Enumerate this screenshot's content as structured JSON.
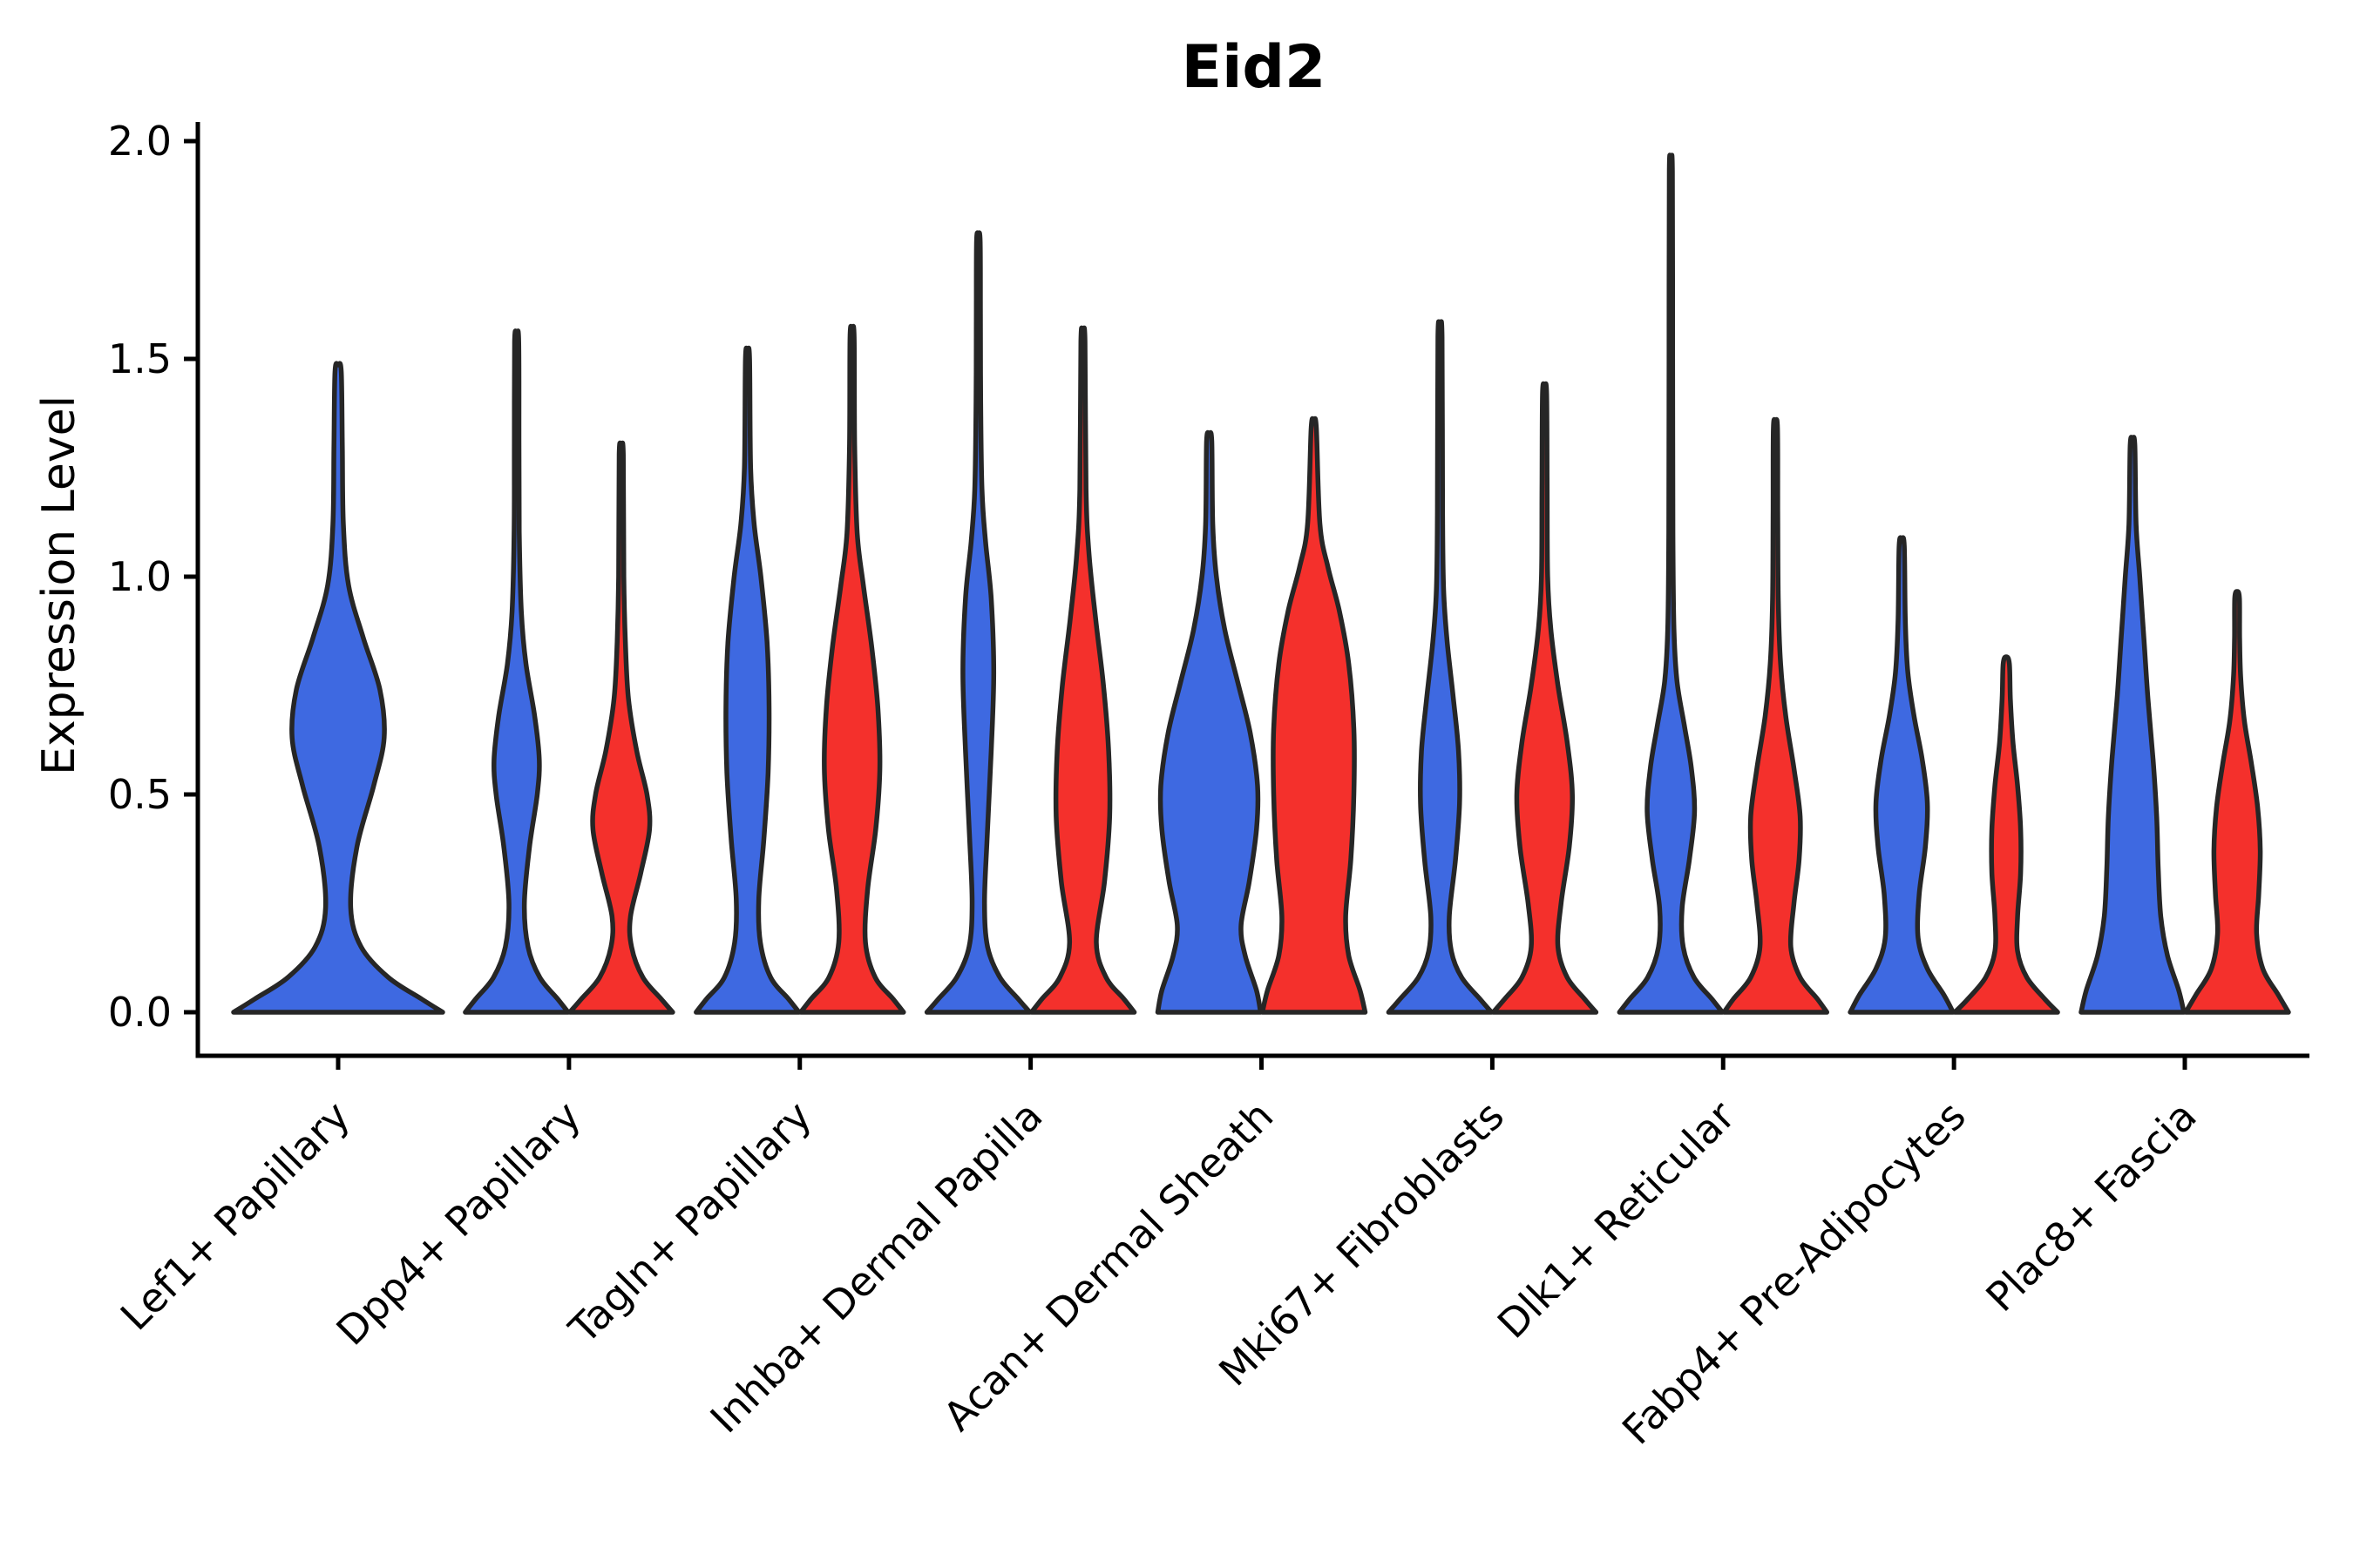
{
  "title": "Eid2",
  "axes": {
    "ylabel": "Expression Level",
    "ytick_labels": [
      "0.0",
      "0.5",
      "1.0",
      "1.5",
      "2.0"
    ]
  },
  "colors": {
    "blue_fill": "#3E69E1",
    "red_fill": "#F4302C",
    "violin_outline": "#262626",
    "axis_color": "#000000",
    "background": "#ffffff"
  },
  "chart_data": {
    "type": "violin",
    "title": "Eid2",
    "ylabel": "Expression Level",
    "ylim": [
      -0.1,
      2.04
    ],
    "yticks": [
      0,
      0.5,
      1.0,
      1.5,
      2.0
    ],
    "ytick_labels": [
      "0.0",
      "0.5",
      "1.0",
      "1.5",
      "2.0"
    ],
    "grid": false,
    "legend": "none",
    "categories": [
      "Lef1+ Papillary",
      "Dpp4+ Papillary",
      "Tagln+ Papillary",
      "Inhba+ Dermal Papilla",
      "Acan+ Dermal Sheath",
      "Mki67+ Fibroblasts",
      "Dlk1+ Reticular",
      "Fabp4+ Pre-Adipocytes",
      "Plac8+ Fascia"
    ],
    "series": [
      {
        "id": "blue",
        "color": "#3E69E1"
      },
      {
        "id": "red",
        "color": "#F4302C"
      }
    ],
    "violins": [
      {
        "category_index": 0,
        "series": "blue",
        "max": 1.47,
        "wide": true,
        "profile": [
          [
            0,
            1.0
          ],
          [
            0.03,
            0.8
          ],
          [
            0.08,
            0.48
          ],
          [
            0.15,
            0.22
          ],
          [
            0.24,
            0.12
          ],
          [
            0.38,
            0.18
          ],
          [
            0.52,
            0.34
          ],
          [
            0.63,
            0.44
          ],
          [
            0.74,
            0.4
          ],
          [
            0.86,
            0.24
          ],
          [
            0.98,
            0.1
          ],
          [
            1.12,
            0.05
          ],
          [
            1.3,
            0.04
          ],
          [
            1.47,
            0.03
          ]
        ]
      },
      {
        "category_index": 1,
        "series": "blue",
        "max": 1.54,
        "profile": [
          [
            0,
            1.0
          ],
          [
            0.03,
            0.8
          ],
          [
            0.08,
            0.45
          ],
          [
            0.15,
            0.22
          ],
          [
            0.25,
            0.15
          ],
          [
            0.38,
            0.25
          ],
          [
            0.5,
            0.4
          ],
          [
            0.58,
            0.44
          ],
          [
            0.68,
            0.35
          ],
          [
            0.8,
            0.18
          ],
          [
            0.92,
            0.09
          ],
          [
            1.1,
            0.05
          ],
          [
            1.3,
            0.045
          ],
          [
            1.54,
            0.04
          ]
        ]
      },
      {
        "category_index": 1,
        "series": "red",
        "max": 1.28,
        "profile": [
          [
            0,
            1.0
          ],
          [
            0.03,
            0.78
          ],
          [
            0.08,
            0.42
          ],
          [
            0.15,
            0.2
          ],
          [
            0.22,
            0.18
          ],
          [
            0.32,
            0.38
          ],
          [
            0.42,
            0.55
          ],
          [
            0.5,
            0.5
          ],
          [
            0.6,
            0.3
          ],
          [
            0.72,
            0.14
          ],
          [
            0.85,
            0.08
          ],
          [
            1.0,
            0.05
          ],
          [
            1.28,
            0.04
          ]
        ]
      },
      {
        "category_index": 2,
        "series": "blue",
        "max": 1.5,
        "profile": [
          [
            0,
            1.0
          ],
          [
            0.03,
            0.8
          ],
          [
            0.08,
            0.45
          ],
          [
            0.16,
            0.25
          ],
          [
            0.26,
            0.22
          ],
          [
            0.4,
            0.32
          ],
          [
            0.55,
            0.4
          ],
          [
            0.7,
            0.42
          ],
          [
            0.85,
            0.38
          ],
          [
            1.0,
            0.26
          ],
          [
            1.12,
            0.13
          ],
          [
            1.25,
            0.06
          ],
          [
            1.5,
            0.04
          ]
        ]
      },
      {
        "category_index": 2,
        "series": "red",
        "max": 1.55,
        "profile": [
          [
            0,
            1.0
          ],
          [
            0.03,
            0.8
          ],
          [
            0.08,
            0.45
          ],
          [
            0.16,
            0.26
          ],
          [
            0.28,
            0.3
          ],
          [
            0.42,
            0.46
          ],
          [
            0.56,
            0.54
          ],
          [
            0.7,
            0.5
          ],
          [
            0.84,
            0.38
          ],
          [
            0.98,
            0.22
          ],
          [
            1.1,
            0.1
          ],
          [
            1.3,
            0.05
          ],
          [
            1.55,
            0.04
          ]
        ]
      },
      {
        "category_index": 3,
        "series": "blue",
        "max": 1.77,
        "profile": [
          [
            0,
            1.0
          ],
          [
            0.03,
            0.78
          ],
          [
            0.08,
            0.42
          ],
          [
            0.15,
            0.18
          ],
          [
            0.25,
            0.12
          ],
          [
            0.4,
            0.17
          ],
          [
            0.6,
            0.25
          ],
          [
            0.78,
            0.3
          ],
          [
            0.95,
            0.25
          ],
          [
            1.08,
            0.14
          ],
          [
            1.2,
            0.07
          ],
          [
            1.4,
            0.045
          ],
          [
            1.6,
            0.04
          ],
          [
            1.77,
            0.035
          ]
        ]
      },
      {
        "category_index": 3,
        "series": "red",
        "max": 1.54,
        "profile": [
          [
            0,
            1.0
          ],
          [
            0.03,
            0.8
          ],
          [
            0.08,
            0.45
          ],
          [
            0.16,
            0.26
          ],
          [
            0.3,
            0.42
          ],
          [
            0.45,
            0.52
          ],
          [
            0.6,
            0.5
          ],
          [
            0.75,
            0.4
          ],
          [
            0.9,
            0.25
          ],
          [
            1.05,
            0.12
          ],
          [
            1.2,
            0.06
          ],
          [
            1.54,
            0.04
          ]
        ]
      },
      {
        "category_index": 4,
        "series": "blue",
        "max": 1.31,
        "profile": [
          [
            0,
            1.0
          ],
          [
            0.05,
            0.92
          ],
          [
            0.13,
            0.7
          ],
          [
            0.2,
            0.62
          ],
          [
            0.3,
            0.78
          ],
          [
            0.42,
            0.92
          ],
          [
            0.52,
            0.94
          ],
          [
            0.64,
            0.8
          ],
          [
            0.76,
            0.55
          ],
          [
            0.88,
            0.3
          ],
          [
            1.0,
            0.14
          ],
          [
            1.12,
            0.07
          ],
          [
            1.31,
            0.05
          ]
        ]
      },
      {
        "category_index": 4,
        "series": "red",
        "max": 1.34,
        "profile": [
          [
            0,
            1.0
          ],
          [
            0.05,
            0.9
          ],
          [
            0.13,
            0.68
          ],
          [
            0.22,
            0.62
          ],
          [
            0.35,
            0.72
          ],
          [
            0.5,
            0.78
          ],
          [
            0.65,
            0.78
          ],
          [
            0.8,
            0.68
          ],
          [
            0.92,
            0.5
          ],
          [
            1.02,
            0.28
          ],
          [
            1.12,
            0.12
          ],
          [
            1.34,
            0.05
          ]
        ]
      },
      {
        "category_index": 5,
        "series": "blue",
        "max": 1.55,
        "profile": [
          [
            0,
            1.0
          ],
          [
            0.03,
            0.78
          ],
          [
            0.08,
            0.42
          ],
          [
            0.14,
            0.22
          ],
          [
            0.22,
            0.18
          ],
          [
            0.35,
            0.3
          ],
          [
            0.48,
            0.38
          ],
          [
            0.6,
            0.36
          ],
          [
            0.72,
            0.26
          ],
          [
            0.85,
            0.14
          ],
          [
            0.97,
            0.07
          ],
          [
            1.15,
            0.05
          ],
          [
            1.55,
            0.04
          ]
        ]
      },
      {
        "category_index": 5,
        "series": "red",
        "max": 1.42,
        "profile": [
          [
            0,
            1.0
          ],
          [
            0.03,
            0.78
          ],
          [
            0.08,
            0.44
          ],
          [
            0.15,
            0.26
          ],
          [
            0.25,
            0.32
          ],
          [
            0.38,
            0.48
          ],
          [
            0.5,
            0.54
          ],
          [
            0.62,
            0.44
          ],
          [
            0.75,
            0.26
          ],
          [
            0.88,
            0.12
          ],
          [
            1.0,
            0.06
          ],
          [
            1.2,
            0.05
          ],
          [
            1.42,
            0.04
          ]
        ]
      },
      {
        "category_index": 6,
        "series": "blue",
        "max": 1.93,
        "profile": [
          [
            0,
            1.0
          ],
          [
            0.03,
            0.8
          ],
          [
            0.08,
            0.45
          ],
          [
            0.15,
            0.24
          ],
          [
            0.24,
            0.22
          ],
          [
            0.35,
            0.36
          ],
          [
            0.46,
            0.46
          ],
          [
            0.56,
            0.4
          ],
          [
            0.66,
            0.26
          ],
          [
            0.76,
            0.12
          ],
          [
            0.88,
            0.06
          ],
          [
            1.1,
            0.04
          ],
          [
            1.5,
            0.035
          ],
          [
            1.93,
            0.03
          ]
        ]
      },
      {
        "category_index": 6,
        "series": "red",
        "max": 1.34,
        "profile": [
          [
            0,
            1.0
          ],
          [
            0.03,
            0.82
          ],
          [
            0.08,
            0.48
          ],
          [
            0.15,
            0.3
          ],
          [
            0.25,
            0.36
          ],
          [
            0.35,
            0.46
          ],
          [
            0.45,
            0.48
          ],
          [
            0.56,
            0.36
          ],
          [
            0.68,
            0.2
          ],
          [
            0.8,
            0.1
          ],
          [
            0.95,
            0.055
          ],
          [
            1.15,
            0.045
          ],
          [
            1.34,
            0.04
          ]
        ]
      },
      {
        "category_index": 7,
        "series": "blue",
        "max": 1.07,
        "profile": [
          [
            0,
            1.0
          ],
          [
            0.04,
            0.82
          ],
          [
            0.1,
            0.5
          ],
          [
            0.17,
            0.32
          ],
          [
            0.27,
            0.34
          ],
          [
            0.38,
            0.46
          ],
          [
            0.48,
            0.5
          ],
          [
            0.58,
            0.4
          ],
          [
            0.68,
            0.24
          ],
          [
            0.78,
            0.12
          ],
          [
            0.9,
            0.07
          ],
          [
            1.07,
            0.05
          ]
        ]
      },
      {
        "category_index": 7,
        "series": "red",
        "max": 0.8,
        "profile": [
          [
            0,
            1.0
          ],
          [
            0.03,
            0.75
          ],
          [
            0.08,
            0.4
          ],
          [
            0.14,
            0.22
          ],
          [
            0.22,
            0.22
          ],
          [
            0.32,
            0.28
          ],
          [
            0.42,
            0.28
          ],
          [
            0.52,
            0.22
          ],
          [
            0.62,
            0.13
          ],
          [
            0.72,
            0.08
          ],
          [
            0.8,
            0.06
          ]
        ]
      },
      {
        "category_index": 8,
        "series": "blue",
        "max": 1.3,
        "profile": [
          [
            0,
            1.0
          ],
          [
            0.05,
            0.9
          ],
          [
            0.13,
            0.68
          ],
          [
            0.22,
            0.55
          ],
          [
            0.33,
            0.5
          ],
          [
            0.45,
            0.47
          ],
          [
            0.58,
            0.4
          ],
          [
            0.72,
            0.3
          ],
          [
            0.86,
            0.22
          ],
          [
            1.0,
            0.14
          ],
          [
            1.12,
            0.07
          ],
          [
            1.3,
            0.045
          ]
        ]
      },
      {
        "category_index": 8,
        "series": "red",
        "max": 0.95,
        "profile": [
          [
            0,
            1.0
          ],
          [
            0.04,
            0.8
          ],
          [
            0.1,
            0.5
          ],
          [
            0.18,
            0.38
          ],
          [
            0.27,
            0.42
          ],
          [
            0.37,
            0.45
          ],
          [
            0.47,
            0.4
          ],
          [
            0.57,
            0.28
          ],
          [
            0.67,
            0.14
          ],
          [
            0.77,
            0.07
          ],
          [
            0.86,
            0.05
          ],
          [
            0.95,
            0.045
          ]
        ]
      }
    ]
  }
}
